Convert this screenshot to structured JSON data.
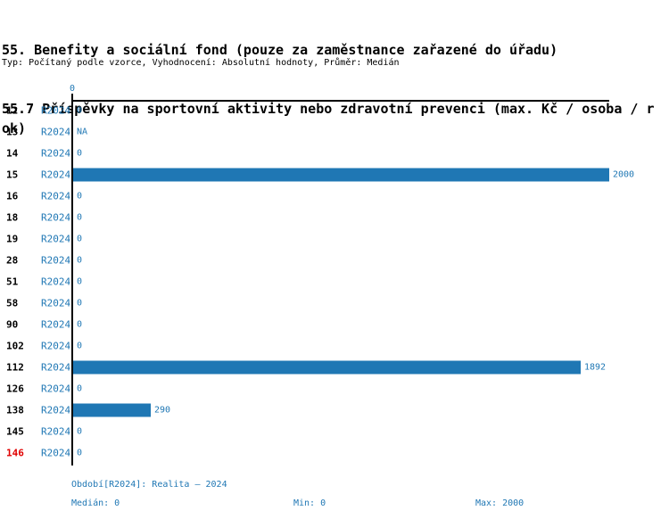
{
  "header": {
    "title_line1": "55. Benefity a sociální fond (pouze za zaměstnance zařazené do úřadu)",
    "title_line2": "55.7 Příspěvky na sportovní aktivity nebo zdravotní prevenci (max. Kč / osoba / rok)",
    "subtitle": "Typ: Počítaný podle vzorce, Vyhodnocení: Absolutní hodnoty, Průměr: Medián"
  },
  "chart_data": {
    "type": "bar",
    "orientation": "horizontal",
    "categories": [
      "12",
      "13",
      "14",
      "15",
      "16",
      "18",
      "19",
      "28",
      "51",
      "58",
      "90",
      "102",
      "112",
      "126",
      "138",
      "145",
      "146"
    ],
    "series": [
      {
        "name": "R2024",
        "values": [
          0,
          null,
          0,
          2000,
          0,
          0,
          0,
          0,
          0,
          0,
          0,
          0,
          1892,
          0,
          290,
          0,
          0
        ]
      }
    ],
    "value_labels": [
      "0",
      "NA",
      "0",
      "2000",
      "0",
      "0",
      "0",
      "0",
      "0",
      "0",
      "0",
      "0",
      "1892",
      "0",
      "290",
      "0",
      "0"
    ],
    "highlighted_categories": [
      "146"
    ],
    "xlim": [
      0,
      2000
    ],
    "xticks": [
      "0"
    ],
    "grid": false,
    "legend_position": "none",
    "bar_color": "#1f77b4"
  },
  "axis": {
    "top_tick_label": "0"
  },
  "footer": {
    "period_label": "Období[R2024]: Realita – 2024",
    "median": "Medián: 0",
    "min": "Min: 0",
    "max": "Max: 2000"
  },
  "colors": {
    "bar_blue": "#1f77b4",
    "text_blue": "#1f77b4",
    "highlight_red": "#e00000",
    "axis_black": "#000000"
  }
}
